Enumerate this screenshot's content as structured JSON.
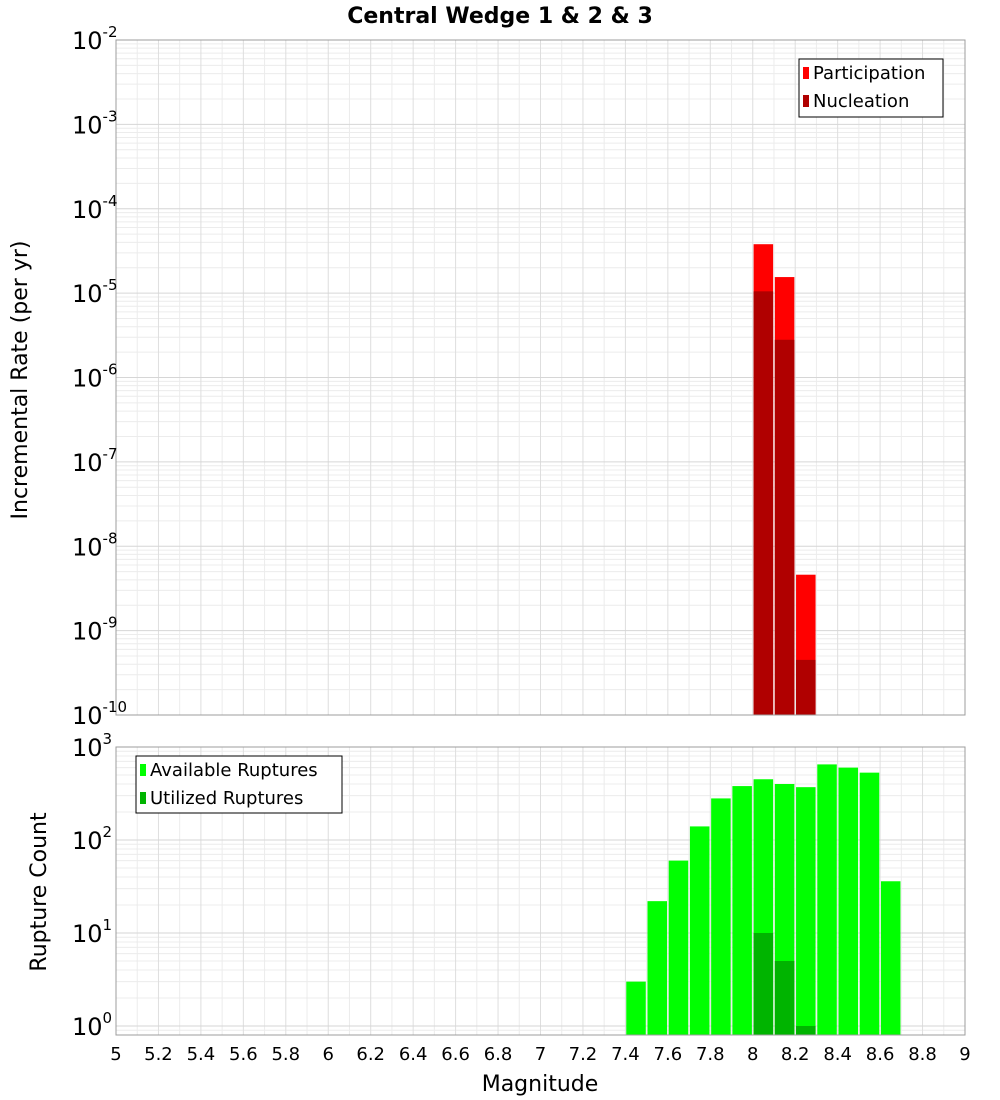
{
  "chart_data": [
    {
      "type": "bar",
      "title": "Central Wedge 1 & 2 & 3",
      "xlabel": "Magnitude",
      "ylabel": "Incremental Rate (per yr)",
      "yscale": "log",
      "xlim": [
        5,
        9
      ],
      "ylim": [
        1e-10,
        0.01
      ],
      "x_ticks": [
        "5",
        "5.2",
        "5.4",
        "5.6",
        "5.8",
        "6",
        "6.2",
        "6.4",
        "6.6",
        "6.8",
        "7",
        "7.2",
        "7.4",
        "7.6",
        "7.8",
        "8",
        "8.2",
        "8.4",
        "8.6",
        "8.8",
        "9"
      ],
      "y_ticks": [
        {
          "base": "10",
          "exp": "-2",
          "value": 0.01
        },
        {
          "base": "10",
          "exp": "-3",
          "value": 0.001
        },
        {
          "base": "10",
          "exp": "-4",
          "value": 0.0001
        },
        {
          "base": "10",
          "exp": "-5",
          "value": 1e-05
        },
        {
          "base": "10",
          "exp": "-6",
          "value": 1e-06
        },
        {
          "base": "10",
          "exp": "-7",
          "value": 1e-07
        },
        {
          "base": "10",
          "exp": "-8",
          "value": 1e-08
        },
        {
          "base": "10",
          "exp": "-9",
          "value": 1e-09
        },
        {
          "base": "10",
          "exp": "-10",
          "value": 1e-10
        }
      ],
      "legend_position": "top-right",
      "series": [
        {
          "name": "Participation",
          "color": "#ff0000",
          "x": [
            8.05,
            8.15,
            8.25
          ],
          "values": [
            3.8e-05,
            1.55e-05,
            4.6e-09
          ]
        },
        {
          "name": "Nucleation",
          "color": "#b00000",
          "x": [
            8.05,
            8.15,
            8.25
          ],
          "values": [
            1.05e-05,
            2.8e-06,
            4.5e-10
          ]
        }
      ]
    },
    {
      "type": "bar",
      "xlabel": "Magnitude",
      "ylabel": "Rupture Count",
      "yscale": "log",
      "xlim": [
        5,
        9
      ],
      "ylim": [
        0.8,
        1000
      ],
      "x_ticks": [
        "5",
        "5.2",
        "5.4",
        "5.6",
        "5.8",
        "6",
        "6.2",
        "6.4",
        "6.6",
        "6.8",
        "7",
        "7.2",
        "7.4",
        "7.6",
        "7.8",
        "8",
        "8.2",
        "8.4",
        "8.6",
        "8.8",
        "9"
      ],
      "y_ticks": [
        {
          "base": "10",
          "exp": "3",
          "value": 1000
        },
        {
          "base": "10",
          "exp": "2",
          "value": 100
        },
        {
          "base": "10",
          "exp": "1",
          "value": 10
        },
        {
          "base": "10",
          "exp": "0",
          "value": 1
        }
      ],
      "legend_position": "top-left",
      "series": [
        {
          "name": "Available Ruptures",
          "color": "#00ff00",
          "x": [
            7.45,
            7.55,
            7.65,
            7.75,
            7.85,
            7.95,
            8.05,
            8.15,
            8.25,
            8.35,
            8.45,
            8.55,
            8.65
          ],
          "values": [
            3,
            22,
            60,
            140,
            280,
            380,
            450,
            400,
            370,
            650,
            600,
            530,
            36
          ]
        },
        {
          "name": "Utilized Ruptures",
          "color": "#00b400",
          "x": [
            8.05,
            8.15,
            8.25
          ],
          "values": [
            10,
            5,
            1
          ]
        }
      ]
    }
  ]
}
